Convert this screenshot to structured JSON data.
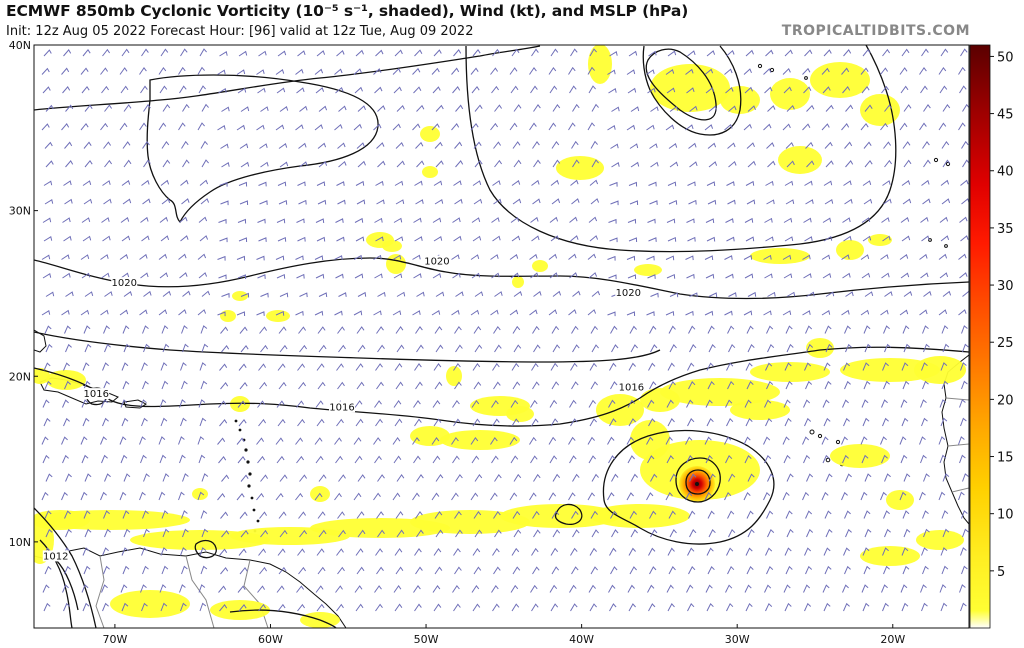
{
  "header": {
    "title": "ECMWF 850mb Cyclonic Vorticity (10⁻⁵ s⁻¹, shaded), Wind (kt), and MSLP (hPa)",
    "subtitle": "Init: 12z Aug 05 2022   Forecast Hour: [96]   valid at 12z Tue, Aug 09 2022",
    "credit": "TROPICALTIDBITS.COM"
  },
  "map": {
    "lat_labels": [
      {
        "label": "40N",
        "lat": 40
      },
      {
        "label": "30N",
        "lat": 30
      },
      {
        "label": "20N",
        "lat": 20
      },
      {
        "label": "10N",
        "lat": 10
      }
    ],
    "lon_labels": [
      {
        "label": "70W",
        "lon": -70
      },
      {
        "label": "60W",
        "lon": -60
      },
      {
        "label": "50W",
        "lon": -50
      },
      {
        "label": "40W",
        "lon": -40
      },
      {
        "label": "30W",
        "lon": -30
      },
      {
        "label": "20W",
        "lon": -20
      }
    ],
    "isobar_labels": [
      {
        "label": "1020",
        "lat": 26.8,
        "lon": -49.3
      },
      {
        "label": "1020",
        "lat": 25.5,
        "lon": -69.4
      },
      {
        "label": "1020",
        "lat": 24.9,
        "lon": -37.0
      },
      {
        "label": "1016",
        "lat": 18.8,
        "lon": -71.2
      },
      {
        "label": "1016",
        "lat": 18.0,
        "lon": -55.4
      },
      {
        "label": "1016",
        "lat": 19.2,
        "lon": -36.8
      },
      {
        "label": "1012",
        "lat": 9.0,
        "lon": -73.8
      }
    ],
    "colors": {
      "land_fill": "#ffffff",
      "coast": "#111111",
      "wind_barb": "#6f6fb8",
      "isobar": "#111111",
      "vort_low": "#ffff33",
      "vort_mid": "#ffd400",
      "vort_high": "#ff3300",
      "vort_peak": "#7a0000"
    }
  },
  "colorbar": {
    "ticks": [
      "5",
      "10",
      "15",
      "20",
      "25",
      "30",
      "35",
      "40",
      "45",
      "50"
    ],
    "min": 0,
    "max": 51
  }
}
